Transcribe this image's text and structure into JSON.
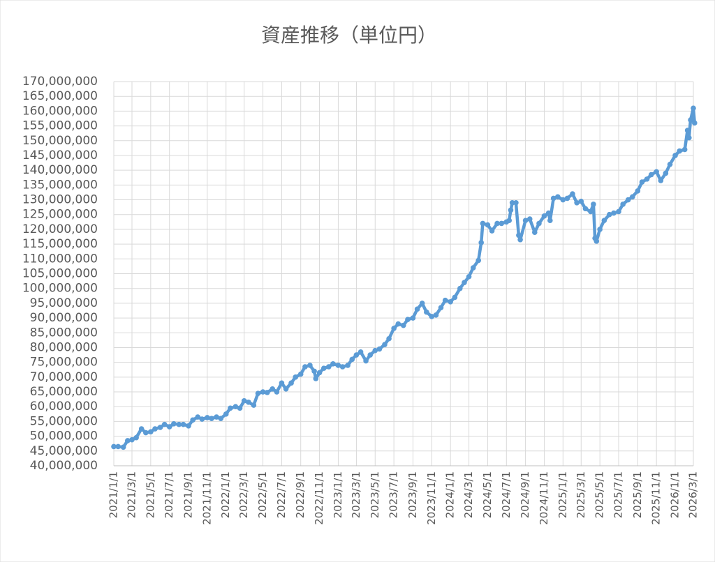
{
  "chart_data": {
    "type": "line",
    "title": "資産推移（単位円）",
    "x": [
      "2021/1/1",
      "2021/1/15",
      "2021/2/1",
      "2021/2/15",
      "2021/3/1",
      "2021/3/15",
      "2021/4/1",
      "2021/4/15",
      "2021/5/1",
      "2021/5/15",
      "2021/6/1",
      "2021/6/15",
      "2021/7/1",
      "2021/7/15",
      "2021/8/1",
      "2021/8/15",
      "2021/9/1",
      "2021/9/15",
      "2021/10/1",
      "2021/10/15",
      "2021/11/1",
      "2021/11/15",
      "2021/12/1",
      "2021/12/15",
      "2022/1/1",
      "2022/1/15",
      "2022/2/1",
      "2022/2/15",
      "2022/3/1",
      "2022/3/15",
      "2022/4/1",
      "2022/4/15",
      "2022/5/1",
      "2022/5/15",
      "2022/6/1",
      "2022/6/15",
      "2022/7/1",
      "2022/7/15",
      "2022/8/1",
      "2022/8/15",
      "2022/9/1",
      "2022/9/15",
      "2022/10/1",
      "2022/10/15",
      "2022/10/20",
      "2022/11/1",
      "2022/11/15",
      "2022/12/1",
      "2022/12/15",
      "2023/1/1",
      "2023/1/15",
      "2023/2/1",
      "2023/2/15",
      "2023/3/1",
      "2023/3/15",
      "2023/4/1",
      "2023/4/15",
      "2023/5/1",
      "2023/5/15",
      "2023/6/1",
      "2023/6/15",
      "2023/7/1",
      "2023/7/15",
      "2023/8/1",
      "2023/8/15",
      "2023/9/1",
      "2023/9/15",
      "2023/10/1",
      "2023/10/15",
      "2023/11/1",
      "2023/11/15",
      "2023/12/1",
      "2023/12/15",
      "2024/1/1",
      "2024/1/15",
      "2024/2/1",
      "2024/2/15",
      "2024/3/1",
      "2024/3/15",
      "2024/4/1",
      "2024/4/10",
      "2024/4/15",
      "2024/5/1",
      "2024/5/15",
      "2024/6/1",
      "2024/6/15",
      "2024/7/1",
      "2024/7/10",
      "2024/7/15",
      "2024/7/20",
      "2024/8/1",
      "2024/8/10",
      "2024/8/15",
      "2024/9/1",
      "2024/9/15",
      "2024/10/1",
      "2024/10/15",
      "2024/11/1",
      "2024/11/15",
      "2024/11/20",
      "2024/12/1",
      "2024/12/15",
      "2025/1/1",
      "2025/1/15",
      "2025/2/1",
      "2025/2/15",
      "2025/3/1",
      "2025/3/15",
      "2025/4/1",
      "2025/4/10",
      "2025/4/15",
      "2025/4/20",
      "2025/5/1",
      "2025/5/15",
      "2025/6/1",
      "2025/6/15",
      "2025/7/1",
      "2025/7/15",
      "2025/8/1",
      "2025/8/15",
      "2025/9/1",
      "2025/9/15",
      "2025/10/1",
      "2025/10/15",
      "2025/11/1",
      "2025/11/15",
      "2025/12/1",
      "2025/12/15",
      "2026/1/1",
      "2026/1/15",
      "2026/2/1",
      "2026/2/10",
      "2026/2/15",
      "2026/2/20",
      "2026/3/1",
      "2026/3/5"
    ],
    "series": [
      {
        "name": "資産",
        "color": "#5b9bd5",
        "values": [
          46500000,
          46500000,
          46300000,
          48500000,
          48800000,
          49500000,
          52500000,
          51200000,
          51500000,
          52500000,
          53000000,
          54000000,
          53200000,
          54200000,
          54000000,
          54000000,
          53500000,
          55500000,
          56500000,
          55800000,
          56300000,
          56000000,
          56500000,
          56000000,
          57500000,
          59500000,
          60000000,
          59500000,
          62000000,
          61500000,
          60500000,
          64500000,
          65000000,
          64800000,
          66000000,
          65000000,
          68000000,
          66000000,
          68000000,
          70000000,
          71000000,
          73500000,
          74000000,
          72000000,
          69500000,
          71500000,
          73000000,
          73500000,
          74500000,
          74000000,
          73500000,
          74000000,
          76000000,
          77500000,
          78500000,
          75500000,
          77500000,
          79000000,
          79500000,
          81000000,
          83000000,
          86500000,
          88000000,
          87500000,
          89500000,
          90000000,
          93000000,
          95000000,
          92000000,
          90500000,
          91000000,
          93500000,
          96000000,
          95500000,
          97000000,
          100000000,
          102000000,
          104000000,
          107000000,
          109500000,
          115500000,
          122000000,
          121500000,
          119500000,
          122000000,
          122000000,
          122500000,
          123000000,
          126500000,
          129000000,
          129000000,
          118000000,
          116500000,
          123000000,
          123500000,
          119000000,
          122000000,
          124500000,
          125500000,
          123000000,
          130500000,
          131000000,
          130000000,
          130500000,
          132000000,
          129000000,
          129500000,
          127000000,
          126000000,
          128500000,
          117000000,
          116000000,
          120000000,
          123000000,
          125000000,
          125500000,
          126000000,
          128500000,
          130000000,
          131000000,
          133000000,
          136000000,
          137000000,
          138500000,
          139500000,
          136500000,
          139000000,
          142000000,
          145000000,
          146500000,
          147000000,
          153500000,
          151000000,
          157000000,
          161000000,
          156000000
        ]
      }
    ],
    "ylim": [
      40000000,
      170000000
    ],
    "yticks": [
      {
        "value": 40000000,
        "label": "40,000,000"
      },
      {
        "value": 45000000,
        "label": "45,000,000"
      },
      {
        "value": 50000000,
        "label": "50,000,000"
      },
      {
        "value": 55000000,
        "label": "55,000,000"
      },
      {
        "value": 60000000,
        "label": "60,000,000"
      },
      {
        "value": 65000000,
        "label": "65,000,000"
      },
      {
        "value": 70000000,
        "label": "70,000,000"
      },
      {
        "value": 75000000,
        "label": "75,000,000"
      },
      {
        "value": 80000000,
        "label": "80,000,000"
      },
      {
        "value": 85000000,
        "label": "85,000,000"
      },
      {
        "value": 90000000,
        "label": "90,000,000"
      },
      {
        "value": 95000000,
        "label": "95,000,000"
      },
      {
        "value": 100000000,
        "label": "100,000,000"
      },
      {
        "value": 105000000,
        "label": "105,000,000"
      },
      {
        "value": 110000000,
        "label": "110,000,000"
      },
      {
        "value": 115000000,
        "label": "115,000,000"
      },
      {
        "value": 120000000,
        "label": "120,000,000"
      },
      {
        "value": 125000000,
        "label": "125,000,000"
      },
      {
        "value": 130000000,
        "label": "130,000,000"
      },
      {
        "value": 135000000,
        "label": "135,000,000"
      },
      {
        "value": 140000000,
        "label": "140,000,000"
      },
      {
        "value": 145000000,
        "label": "145,000,000"
      },
      {
        "value": 150000000,
        "label": "150,000,000"
      },
      {
        "value": 155000000,
        "label": "155,000,000"
      },
      {
        "value": 160000000,
        "label": "160,000,000"
      },
      {
        "value": 165000000,
        "label": "165,000,000"
      },
      {
        "value": 170000000,
        "label": "170,000,000"
      }
    ],
    "xlim": [
      "2021/1/1",
      "2026/3/1"
    ],
    "xticks": [
      "2021/1/1",
      "2021/3/1",
      "2021/5/1",
      "2021/7/1",
      "2021/9/1",
      "2021/11/1",
      "2022/1/1",
      "2022/3/1",
      "2022/5/1",
      "2022/7/1",
      "2022/9/1",
      "2022/11/1",
      "2023/1/1",
      "2023/3/1",
      "2023/5/1",
      "2023/7/1",
      "2023/9/1",
      "2023/11/1",
      "2024/1/1",
      "2024/3/1",
      "2024/5/1",
      "2024/7/1",
      "2024/9/1",
      "2024/11/1",
      "2025/1/1",
      "2025/3/1",
      "2025/5/1",
      "2025/7/1",
      "2025/9/1",
      "2025/11/1",
      "2026/1/1",
      "2026/3/1"
    ],
    "grid": true
  }
}
